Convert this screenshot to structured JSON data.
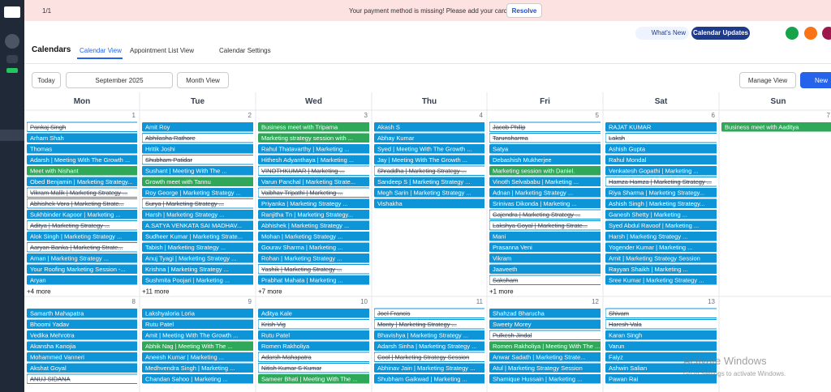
{
  "banner": {
    "pager": "1/1",
    "message": "Your payment method is missing! Please add your card.",
    "action": "Resolve"
  },
  "header": {
    "whats_new": "What's New",
    "updates": "Calendar Updates",
    "title": "Calendars",
    "tabs": [
      "Calendar View",
      "Appointment List View",
      "Calendar Settings"
    ]
  },
  "toolbar": {
    "today": "Today",
    "month": "September 2025",
    "view": "Month View",
    "manage": "Manage View",
    "new": "New"
  },
  "calendar": {
    "day_names": [
      "Mon",
      "Tue",
      "Wed",
      "Thu",
      "Fri",
      "Sat",
      "Sun"
    ],
    "weeks": [
      {
        "days": [
          {
            "date": 1,
            "more": "+4 more",
            "events": [
              {
                "text": "Pankaj Singh",
                "style": "struck"
              },
              {
                "text": "Arham Shah",
                "style": "blue"
              },
              {
                "text": "Thomas",
                "style": "blue"
              },
              {
                "text": "Adarsh | Meeting With The Growth ...",
                "style": "blue"
              },
              {
                "text": "Meet with Nishant",
                "style": "green"
              },
              {
                "text": "Obed Benjamin | Marketing Strategy...",
                "style": "blue"
              },
              {
                "text": "Vikram Malik | Marketing Strategy ...",
                "style": "struck"
              },
              {
                "text": "Abhishek Vora | Marketing Strate...",
                "style": "struck"
              },
              {
                "text": "Sukhbinder Kapoor | Marketing ...",
                "style": "blue"
              },
              {
                "text": "Aditya | Marketing Strategy ...",
                "style": "struck"
              },
              {
                "text": "Alok Singh | Marketing Strategy ...",
                "style": "blue"
              },
              {
                "text": "Aaryan Banka | Marketing Strate...",
                "style": "struck"
              },
              {
                "text": "Aman | Marketing Strategy ...",
                "style": "blue"
              },
              {
                "text": "Your Roofing Marketing Session -...",
                "style": "blue"
              },
              {
                "text": "Aryan",
                "style": "blue"
              }
            ]
          },
          {
            "date": 2,
            "more": "+11 more",
            "events": [
              {
                "text": "Amit Roy",
                "style": "blue"
              },
              {
                "text": "Abhilasha Rathore",
                "style": "struck"
              },
              {
                "text": "Hritik Joshi",
                "style": "blue"
              },
              {
                "text": "Shubham Patidar",
                "style": "struck"
              },
              {
                "text": "Sushant | Meeting With The ...",
                "style": "blue"
              },
              {
                "text": "Growth meet with Tannu",
                "style": "green"
              },
              {
                "text": "Roy George | Marketing Strategy ...",
                "style": "blue"
              },
              {
                "text": "Surya | Marketing Strategy ...",
                "style": "struck"
              },
              {
                "text": "Harsh | Marketing Strategy ...",
                "style": "blue"
              },
              {
                "text": "A.SATYA VENKATA SAI MADHAV...",
                "style": "blue"
              },
              {
                "text": "Sudheer Kumar | Marketing Strate...",
                "style": "blue"
              },
              {
                "text": "Tabish | Marketing Strategy ...",
                "style": "blue"
              },
              {
                "text": "Anuj Tyagi | Marketing Strategy ...",
                "style": "blue"
              },
              {
                "text": "Krishna | Marketing Strategy ...",
                "style": "blue"
              },
              {
                "text": "Sushmita Poojari | Marketing ...",
                "style": "blue"
              }
            ]
          },
          {
            "date": 3,
            "more": "+7 more",
            "events": [
              {
                "text": "Business meet with Triparna",
                "style": "green"
              },
              {
                "text": "Marketing strategy session with ...",
                "style": "green"
              },
              {
                "text": "Rahul Thatavarthy | Marketing ...",
                "style": "blue"
              },
              {
                "text": "Hithesh Adyanthaya | Marketing ...",
                "style": "blue"
              },
              {
                "text": "VINOTHKUMAR | Marketing ...",
                "style": "struck"
              },
              {
                "text": "Varun Panchal | Marketing Strate...",
                "style": "blue"
              },
              {
                "text": "Vaibhav Tripathi | Marketing ...",
                "style": "struck"
              },
              {
                "text": "Priyanka | Marketing Strategy ...",
                "style": "blue"
              },
              {
                "text": "Ranjitha Tn | Marketing Strategy...",
                "style": "blue"
              },
              {
                "text": "Abhishek | Marketing Strategy ...",
                "style": "blue"
              },
              {
                "text": "Mohan | Marketing Strategy ...",
                "style": "blue"
              },
              {
                "text": "Gourav Sharma | Marketing ...",
                "style": "blue"
              },
              {
                "text": "Rohan | Marketing Strategy ...",
                "style": "blue"
              },
              {
                "text": "Yashik | Marketing Strategy ...",
                "style": "struck"
              },
              {
                "text": "Prabhat Mahata | Marketing ...",
                "style": "blue"
              }
            ]
          },
          {
            "date": 4,
            "events": [
              {
                "text": "Akash S",
                "style": "blue"
              },
              {
                "text": "Abhay Kumar",
                "style": "blue"
              },
              {
                "text": "Syed | Meeting With The Growth ...",
                "style": "blue"
              },
              {
                "text": "Jay | Meeting With The Growth ...",
                "style": "blue"
              },
              {
                "text": "Shraddha | Marketing Strategy ...",
                "style": "struck"
              },
              {
                "text": "Sandeep S | Marketing Strategy ...",
                "style": "blue"
              },
              {
                "text": "Megh Sarin | Marketing Strategy ...",
                "style": "blue"
              },
              {
                "text": "Vishakha",
                "style": "blue"
              }
            ]
          },
          {
            "date": 5,
            "more": "+1 more",
            "events": [
              {
                "text": "Jacob Philip",
                "style": "struck"
              },
              {
                "text": "Tarunsharma",
                "style": "struck"
              },
              {
                "text": "Satya",
                "style": "blue"
              },
              {
                "text": "Debashish Mukherjee",
                "style": "blue"
              },
              {
                "text": "Marketing session with Daniel.",
                "style": "green"
              },
              {
                "text": "Vinoth Selvababu | Marketing ...",
                "style": "blue"
              },
              {
                "text": "Adnan | Marketing Strategy ...",
                "style": "blue"
              },
              {
                "text": "Srinivas Dikonda | Marketing ...",
                "style": "blue"
              },
              {
                "text": "Gajendra | Marketing Strategy ...",
                "style": "struck"
              },
              {
                "text": "Lakshya Goyal | Marketing Strate...",
                "style": "struck"
              },
              {
                "text": "Mani",
                "style": "blue"
              },
              {
                "text": "Prasanna Veni",
                "style": "blue"
              },
              {
                "text": "Vikram",
                "style": "blue"
              },
              {
                "text": "Jaaveeth",
                "style": "blue"
              },
              {
                "text": "Saksham",
                "style": "struck"
              }
            ]
          },
          {
            "date": 6,
            "events": [
              {
                "text": "RAJAT KUMAR",
                "style": "blue"
              },
              {
                "text": "Laksh",
                "style": "struck"
              },
              {
                "text": "Ashish Gupta",
                "style": "blue"
              },
              {
                "text": "Rahul Mondal",
                "style": "blue"
              },
              {
                "text": "Venkatesh Gopathi | Marketing ...",
                "style": "blue"
              },
              {
                "text": "Hamza Hamza | Marketing Strategy ...",
                "style": "struck"
              },
              {
                "text": "Riya Sharma | Marketing Strategy...",
                "style": "blue"
              },
              {
                "text": "Ashish Singh | Marketing Strategy...",
                "style": "blue"
              },
              {
                "text": "Ganesh Shetty | Marketing ...",
                "style": "blue"
              },
              {
                "text": "Syed Abdul Ravoof | Marketing ...",
                "style": "blue"
              },
              {
                "text": "Harsh | Marketing Strategy ...",
                "style": "blue"
              },
              {
                "text": "Yogender Kumar | Marketing ...",
                "style": "blue"
              },
              {
                "text": "Amit | Marketing Strategy Session",
                "style": "blue"
              },
              {
                "text": "Rayyan Shaikh | Marketing ...",
                "style": "blue"
              },
              {
                "text": "Sree Kumar | Marketing Strategy ...",
                "style": "blue"
              }
            ]
          },
          {
            "date": 7,
            "events": [
              {
                "text": "Business meet with Aaditya",
                "style": "green"
              }
            ]
          }
        ]
      },
      {
        "days": [
          {
            "date": 8,
            "events": [
              {
                "text": "Samarth Mahapatra",
                "style": "blue"
              },
              {
                "text": "Bhoomi Yadav",
                "style": "blue"
              },
              {
                "text": "Vedika Mehrotra",
                "style": "blue"
              },
              {
                "text": "Akansha Kanojia",
                "style": "blue"
              },
              {
                "text": "Mohammed Vanneri",
                "style": "blue"
              },
              {
                "text": "Akshat Goyal",
                "style": "blue"
              },
              {
                "text": "ANUJ SIDANA",
                "style": "struck"
              }
            ]
          },
          {
            "date": 9,
            "events": [
              {
                "text": "Lakshyaloria Loria",
                "style": "blue"
              },
              {
                "text": "Rutu Patel",
                "style": "blue"
              },
              {
                "text": "Amit | Meeting With The Growth ...",
                "style": "blue"
              },
              {
                "text": "Abhik Nag | Meeting With The ...",
                "style": "green"
              },
              {
                "text": "Aneesh Kumar | Marketing ...",
                "style": "blue"
              },
              {
                "text": "Medhvendra Singh | Marketing ...",
                "style": "blue"
              },
              {
                "text": "Chandan Sahoo | Marketing ...",
                "style": "blue"
              }
            ]
          },
          {
            "date": 10,
            "events": [
              {
                "text": "Aditya Kale",
                "style": "blue"
              },
              {
                "text": "Krish Vig",
                "style": "struck"
              },
              {
                "text": "Rutu Patel",
                "style": "blue"
              },
              {
                "text": "Romen Rakholiya",
                "style": "blue"
              },
              {
                "text": "Adarsh Mahapatra",
                "style": "struck"
              },
              {
                "text": "Nitish Kumar S Kumar",
                "style": "struck"
              },
              {
                "text": "Sameer Bhati | Meeting With The ...",
                "style": "green"
              }
            ]
          },
          {
            "date": 11,
            "events": [
              {
                "text": "Joel Francis",
                "style": "struck"
              },
              {
                "text": "Monty | Marketing Strategy ...",
                "style": "struck"
              },
              {
                "text": "Bhavishya | Marketing Strategy ...",
                "style": "blue"
              },
              {
                "text": "Adarsh Sinha | Marketing Strategy ...",
                "style": "blue"
              },
              {
                "text": "Cool | Marketing Strategy Session",
                "style": "struck"
              },
              {
                "text": "Abhinav Jain | Marketing Strategy ...",
                "style": "blue"
              },
              {
                "text": "Shubham Gaikwad | Marketing ...",
                "style": "blue"
              }
            ]
          },
          {
            "date": 12,
            "events": [
              {
                "text": "Shahzad Bharucha",
                "style": "blue"
              },
              {
                "text": "Sweety Morey",
                "style": "blue"
              },
              {
                "text": "Pulkesh Jindal",
                "style": "struck"
              },
              {
                "text": "Romen Rakholiya | Meeting With The ...",
                "style": "green"
              },
              {
                "text": "Anwar Sadath | Marketing Strate...",
                "style": "blue"
              },
              {
                "text": "Atul | Marketing Strategy Session",
                "style": "blue"
              },
              {
                "text": "Shamique Hussain | Marketing ...",
                "style": "blue"
              }
            ]
          },
          {
            "date": 13,
            "events": [
              {
                "text": "Shivam",
                "style": "struck"
              },
              {
                "text": "Haresh Vala",
                "style": "struck"
              },
              {
                "text": "Karan Singh",
                "style": "blue"
              },
              {
                "text": "Varun",
                "style": "blue"
              },
              {
                "text": "Faiyz",
                "style": "blue"
              },
              {
                "text": "Ashwin Salian",
                "style": "blue"
              },
              {
                "text": "Pawan Rai",
                "style": "blue"
              }
            ]
          }
        ]
      }
    ]
  },
  "watermark": {
    "title": "Activate Windows",
    "subtitle": "Go to Settings to activate Windows."
  }
}
